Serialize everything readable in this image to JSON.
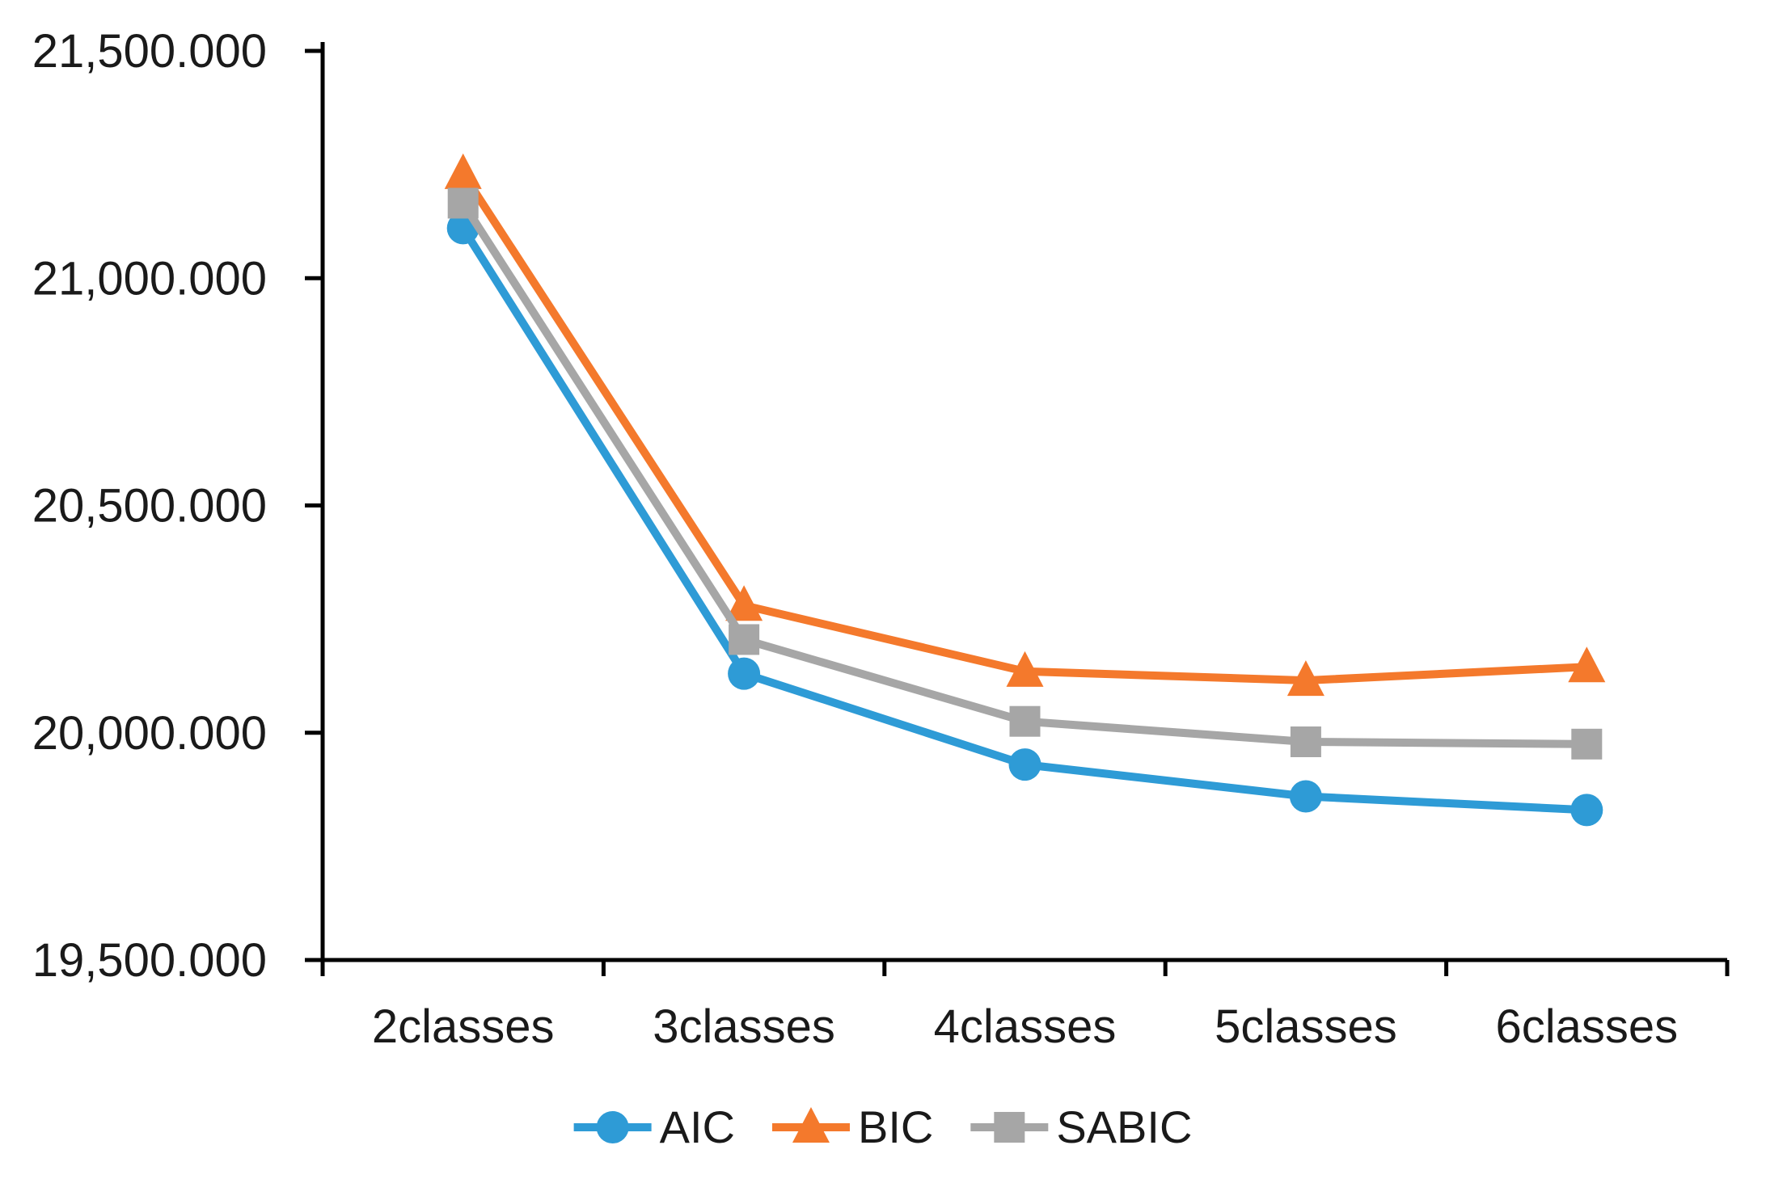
{
  "chart_data": {
    "type": "line",
    "title": "",
    "xlabel": "",
    "ylabel": "",
    "grid": false,
    "categories": [
      "2classes",
      "3classes",
      "4classes",
      "5classes",
      "6classes"
    ],
    "series": [
      {
        "name": "AIC",
        "marker": "circle",
        "color": "#2E9BD6",
        "values": [
          21110,
          20130,
          19930,
          19860,
          19830
        ]
      },
      {
        "name": "BIC",
        "marker": "triangle",
        "color": "#F4792C",
        "values": [
          21230,
          20280,
          20135,
          20115,
          20145
        ]
      },
      {
        "name": "SABIC",
        "marker": "square",
        "color": "#A6A6A6",
        "values": [
          21165,
          20205,
          20025,
          19980,
          19975
        ]
      }
    ],
    "y_axis": {
      "min": 19500,
      "max": 21500,
      "step": 500,
      "ticks": [
        {
          "value": 21500,
          "label": "21,500.000"
        },
        {
          "value": 21000,
          "label": "21,000.000"
        },
        {
          "value": 20500,
          "label": "20,500.000"
        },
        {
          "value": 20000,
          "label": "20,000.000"
        },
        {
          "value": 19500,
          "label": "19,500.000"
        }
      ]
    },
    "legend": {
      "position": "bottom",
      "entries": [
        "AIC",
        "BIC",
        "SABIC"
      ]
    }
  },
  "styles": {
    "background": "#FFFFFF",
    "axis_color": "#000000",
    "text_color": "#1A1A1A"
  }
}
